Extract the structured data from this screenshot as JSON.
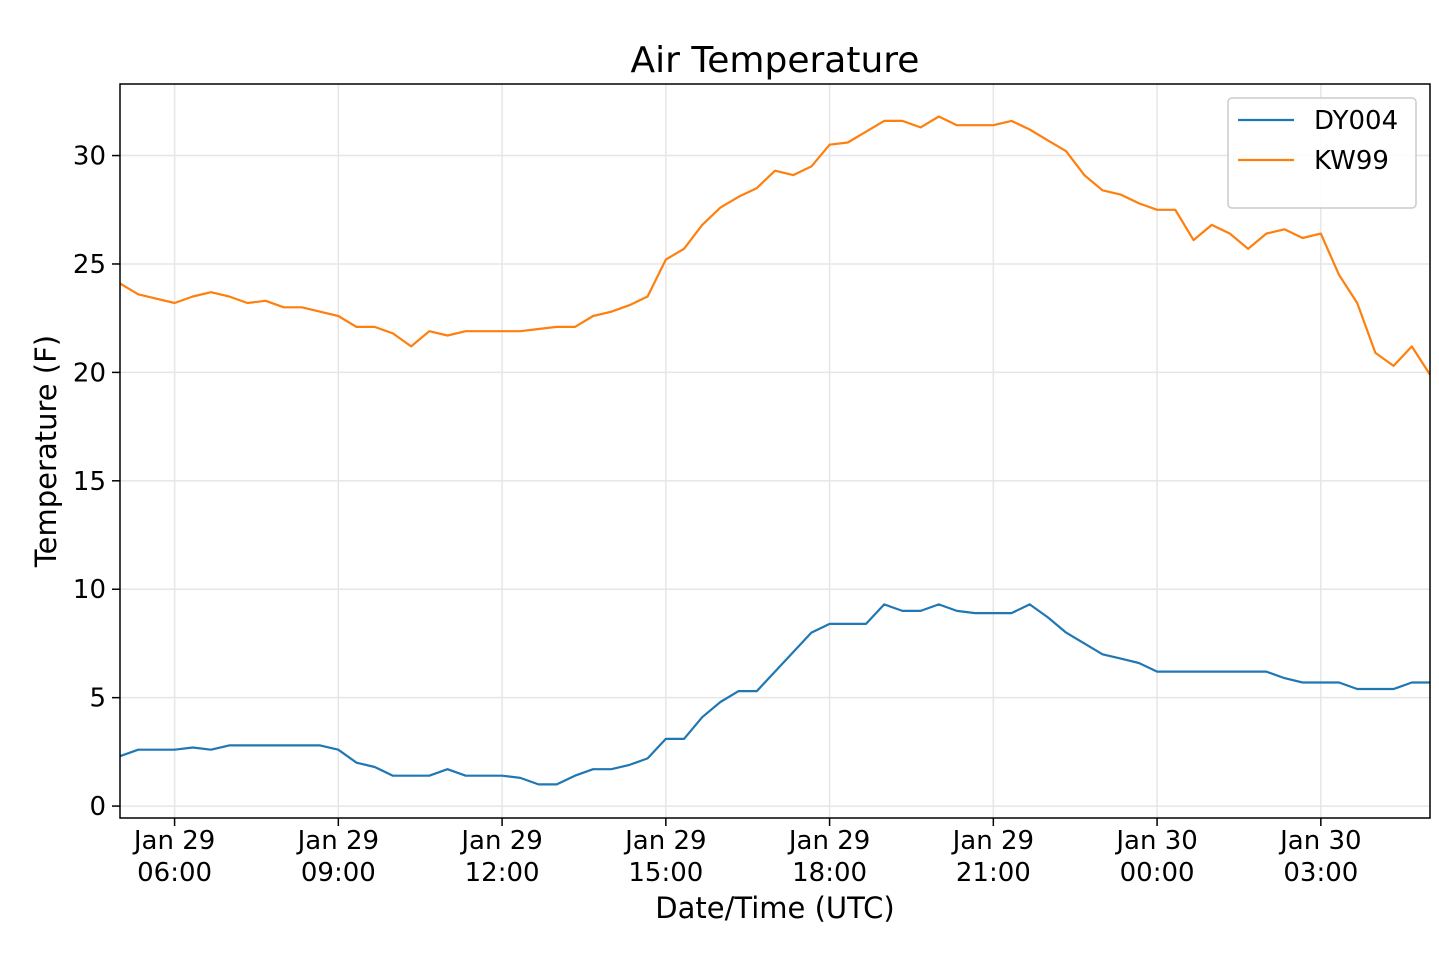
{
  "chart_data": {
    "type": "line",
    "title": "Air Temperature",
    "x_label": "Date/Time (UTC)",
    "y_label": "Temperature (F)",
    "x": [
      "Jan 29 05:00",
      "Jan 29 05:20",
      "Jan 29 05:40",
      "Jan 29 06:00",
      "Jan 29 06:20",
      "Jan 29 06:40",
      "Jan 29 07:00",
      "Jan 29 07:20",
      "Jan 29 07:40",
      "Jan 29 08:00",
      "Jan 29 08:20",
      "Jan 29 08:40",
      "Jan 29 09:00",
      "Jan 29 09:20",
      "Jan 29 09:40",
      "Jan 29 10:00",
      "Jan 29 10:20",
      "Jan 29 10:40",
      "Jan 29 11:00",
      "Jan 29 11:20",
      "Jan 29 11:40",
      "Jan 29 12:00",
      "Jan 29 12:20",
      "Jan 29 12:40",
      "Jan 29 13:00",
      "Jan 29 13:20",
      "Jan 29 13:40",
      "Jan 29 14:00",
      "Jan 29 14:20",
      "Jan 29 14:40",
      "Jan 29 15:00",
      "Jan 29 15:20",
      "Jan 29 15:40",
      "Jan 29 16:00",
      "Jan 29 16:20",
      "Jan 29 16:40",
      "Jan 29 17:00",
      "Jan 29 17:20",
      "Jan 29 17:40",
      "Jan 29 18:00",
      "Jan 29 18:20",
      "Jan 29 18:40",
      "Jan 29 19:00",
      "Jan 29 19:20",
      "Jan 29 19:40",
      "Jan 29 20:00",
      "Jan 29 20:20",
      "Jan 29 20:40",
      "Jan 29 21:00",
      "Jan 29 21:20",
      "Jan 29 21:40",
      "Jan 29 22:00",
      "Jan 29 22:20",
      "Jan 29 22:40",
      "Jan 29 23:00",
      "Jan 29 23:20",
      "Jan 29 23:40",
      "Jan 30 00:00",
      "Jan 30 00:20",
      "Jan 30 00:40",
      "Jan 30 01:00",
      "Jan 30 01:20",
      "Jan 30 01:40",
      "Jan 30 02:00",
      "Jan 30 02:20",
      "Jan 30 02:40",
      "Jan 30 03:00",
      "Jan 30 03:20",
      "Jan 30 03:40",
      "Jan 30 04:00",
      "Jan 30 04:20",
      "Jan 30 04:40",
      "Jan 30 05:00"
    ],
    "series": [
      {
        "name": "DY004",
        "color": "#1f77b4",
        "values": [
          2.3,
          2.6,
          2.6,
          2.6,
          2.7,
          2.6,
          2.8,
          2.8,
          2.8,
          2.8,
          2.8,
          2.8,
          2.6,
          2.0,
          1.8,
          1.4,
          1.4,
          1.4,
          1.7,
          1.4,
          1.4,
          1.4,
          1.3,
          1.0,
          1.0,
          1.4,
          1.7,
          1.7,
          1.9,
          2.2,
          3.1,
          3.1,
          4.1,
          4.8,
          5.3,
          5.3,
          6.2,
          7.1,
          8.0,
          8.4,
          8.4,
          8.4,
          9.3,
          9.0,
          9.0,
          9.3,
          9.0,
          8.9,
          8.9,
          8.9,
          9.3,
          8.7,
          8.0,
          7.5,
          7.0,
          6.8,
          6.6,
          6.2,
          6.2,
          6.2,
          6.2,
          6.2,
          6.2,
          6.2,
          5.9,
          5.7,
          5.7,
          5.7,
          5.4,
          5.4,
          5.4,
          5.7,
          5.7
        ]
      },
      {
        "name": "KW99",
        "color": "#ff7f0e",
        "values": [
          24.1,
          23.6,
          23.4,
          23.2,
          23.5,
          23.7,
          23.5,
          23.2,
          23.3,
          23.0,
          23.0,
          22.8,
          22.6,
          22.1,
          22.1,
          21.8,
          21.2,
          21.9,
          21.7,
          21.9,
          21.9,
          21.9,
          21.9,
          22.0,
          22.1,
          22.1,
          22.6,
          22.8,
          23.1,
          23.5,
          25.2,
          25.7,
          26.8,
          27.6,
          28.1,
          28.5,
          29.3,
          29.1,
          29.5,
          30.5,
          30.6,
          31.1,
          31.6,
          31.6,
          31.3,
          31.8,
          31.4,
          31.4,
          31.4,
          31.6,
          31.2,
          30.7,
          30.2,
          29.1,
          28.4,
          28.2,
          27.8,
          27.5,
          27.5,
          26.1,
          26.8,
          26.4,
          25.7,
          26.4,
          26.6,
          26.2,
          26.4,
          24.5,
          23.2,
          20.9,
          20.3,
          21.2,
          19.9
        ]
      }
    ],
    "xlim": [
      "Jan 29 05:00",
      "Jan 30 05:00"
    ],
    "xticks": [
      {
        "value": "Jan 29 06:00",
        "label": [
          "Jan 29",
          "06:00"
        ]
      },
      {
        "value": "Jan 29 09:00",
        "label": [
          "Jan 29",
          "09:00"
        ]
      },
      {
        "value": "Jan 29 12:00",
        "label": [
          "Jan 29",
          "12:00"
        ]
      },
      {
        "value": "Jan 29 15:00",
        "label": [
          "Jan 29",
          "15:00"
        ]
      },
      {
        "value": "Jan 29 18:00",
        "label": [
          "Jan 29",
          "18:00"
        ]
      },
      {
        "value": "Jan 29 21:00",
        "label": [
          "Jan 29",
          "21:00"
        ]
      },
      {
        "value": "Jan 30 00:00",
        "label": [
          "Jan 30",
          "00:00"
        ]
      },
      {
        "value": "Jan 30 03:00",
        "label": [
          "Jan 30",
          "03:00"
        ]
      }
    ],
    "ylim": [
      -0.55,
      33.3
    ],
    "yticks": [
      0,
      5,
      10,
      15,
      20,
      25,
      30
    ],
    "grid": true,
    "legend": "upper-right"
  }
}
